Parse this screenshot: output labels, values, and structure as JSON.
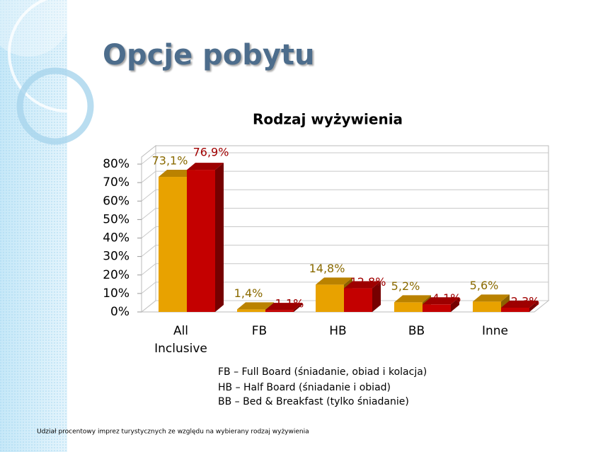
{
  "title": "Opcje pobytu",
  "chart_data": {
    "type": "bar3d",
    "title": "Rodzaj wyżywienia",
    "categories": [
      "All Inclusive",
      "FB",
      "HB",
      "BB",
      "Inne"
    ],
    "series": [
      {
        "color": "#e8a200",
        "values": [
          73.1,
          1.4,
          14.8,
          5.2,
          5.6
        ],
        "value_labels": [
          "73,1%",
          "1,4%",
          "14,8%",
          "5,2%",
          "5,6%"
        ],
        "label_color": "#8a6a00"
      },
      {
        "color": "#c40000",
        "values": [
          76.9,
          1.1,
          12.8,
          4.1,
          2.3
        ],
        "value_labels": [
          "76,9%",
          "1,1%",
          "12,8%",
          "4,1%",
          "2,3%"
        ],
        "label_color": "#a00000"
      }
    ],
    "ylim": [
      0,
      80
    ],
    "yticks": [
      {
        "value": 0,
        "label": "0%"
      },
      {
        "value": 10,
        "label": "10%"
      },
      {
        "value": 20,
        "label": "20%"
      },
      {
        "value": 30,
        "label": "30%"
      },
      {
        "value": 40,
        "label": "40%"
      },
      {
        "value": 50,
        "label": "50%"
      },
      {
        "value": 60,
        "label": "60%"
      },
      {
        "value": 70,
        "label": "70%"
      },
      {
        "value": 80,
        "label": "80%"
      }
    ],
    "grid": true
  },
  "notes": [
    "FB – Full Board (śniadanie, obiad i kolacja)",
    "HB – Half Board (śniadanie i obiad)",
    "BB – Bed & Breakfast (tylko śniadanie)"
  ],
  "footer": "Udział procentowy imprez turystycznych ze względu na wybierany rodzaj wyżywienia"
}
